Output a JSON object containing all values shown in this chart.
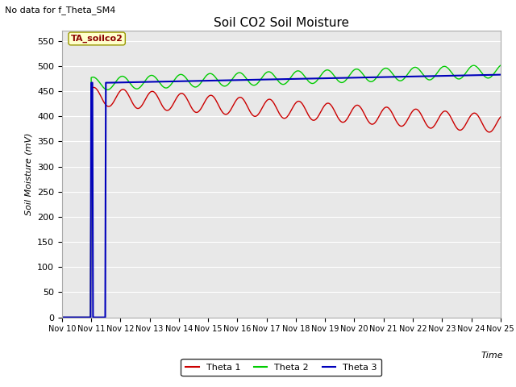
{
  "title": "Soil CO2 Soil Moisture",
  "subtitle": "No data for f_Theta_SM4",
  "ylabel": "Soil Moisture (mV)",
  "xlabel": "Time",
  "annotation_label": "TA_soilco2",
  "x_tick_labels": [
    "Nov 10",
    "Nov 11",
    "Nov 12",
    "Nov 13",
    "Nov 14",
    "Nov 15",
    "Nov 16",
    "Nov 17",
    "Nov 18",
    "Nov 19",
    "Nov 20",
    "Nov 21",
    "Nov 22",
    "Nov 23",
    "Nov 24",
    "Nov 25"
  ],
  "ylim": [
    0,
    570
  ],
  "yticks": [
    0,
    50,
    100,
    150,
    200,
    250,
    300,
    350,
    400,
    450,
    500,
    550
  ],
  "bg_color": "#e8e8e8",
  "line1_color": "#cc0000",
  "line2_color": "#00cc00",
  "line3_color": "#0000bb",
  "legend_labels": [
    "Theta 1",
    "Theta 2",
    "Theta 3"
  ],
  "n_days": 15,
  "n_points_per_day": 48,
  "spike_day": 1.0,
  "spike_dip_day": 1.08,
  "spike_recover_day": 1.5,
  "spike_stable_day": 1.62
}
